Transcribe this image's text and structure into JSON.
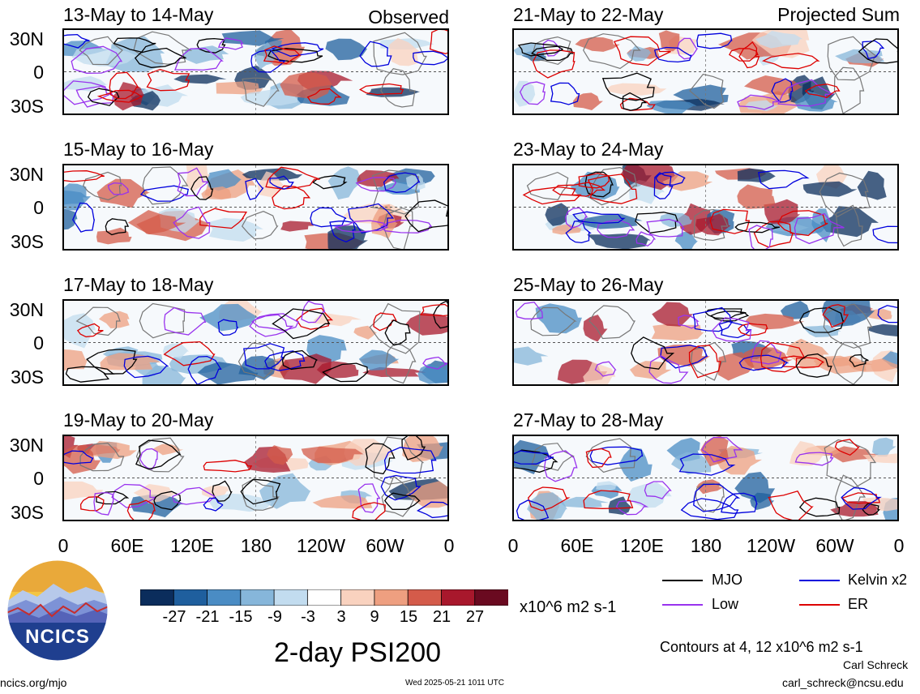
{
  "figure": {
    "title": "2-day PSI200",
    "units": "x10^6 m2 s-1",
    "contour_note": "Contours at 4, 12 x10^6 m2 s-1",
    "author": "Carl Schreck",
    "email": "carl_schreck@ncsu.edu",
    "site": "ncics.org/mjo",
    "timestamp": "Wed 2025-05-21 1011 UTC",
    "logo_text": "NCICS"
  },
  "columns": {
    "left_tag": "Observed",
    "right_tag": "Projected Sum"
  },
  "panels_left": [
    {
      "title": "13-May to 14-May"
    },
    {
      "title": "15-May to 16-May"
    },
    {
      "title": "17-May to 18-May"
    },
    {
      "title": "19-May to 20-May"
    }
  ],
  "panels_right": [
    {
      "title": "21-May to 22-May"
    },
    {
      "title": "23-May to 24-May"
    },
    {
      "title": "25-May to 26-May"
    },
    {
      "title": "27-May to 28-May"
    }
  ],
  "axes": {
    "lat_labels": [
      "30N",
      "0",
      "30S"
    ],
    "lon_labels": [
      "0",
      "60E",
      "120E",
      "180",
      "120W",
      "60W",
      "0"
    ]
  },
  "colorbar": {
    "labels": [
      "-27",
      "-21",
      "-15",
      "-9",
      "-3",
      "3",
      "9",
      "15",
      "21",
      "27"
    ],
    "colors": [
      "#0b2d5c",
      "#1f5f9e",
      "#4a8cc4",
      "#86b6da",
      "#c2dcef",
      "#ffffff",
      "#f9d2bf",
      "#ee9f80",
      "#d45b4a",
      "#a8182c",
      "#6a0a20"
    ]
  },
  "legend": [
    {
      "label": "MJO",
      "color": "#000000"
    },
    {
      "label": "Kelvin x2",
      "color": "#0000dd"
    },
    {
      "label": "Low",
      "color": "#9933ee"
    },
    {
      "label": "ER",
      "color": "#dd0000"
    }
  ]
}
